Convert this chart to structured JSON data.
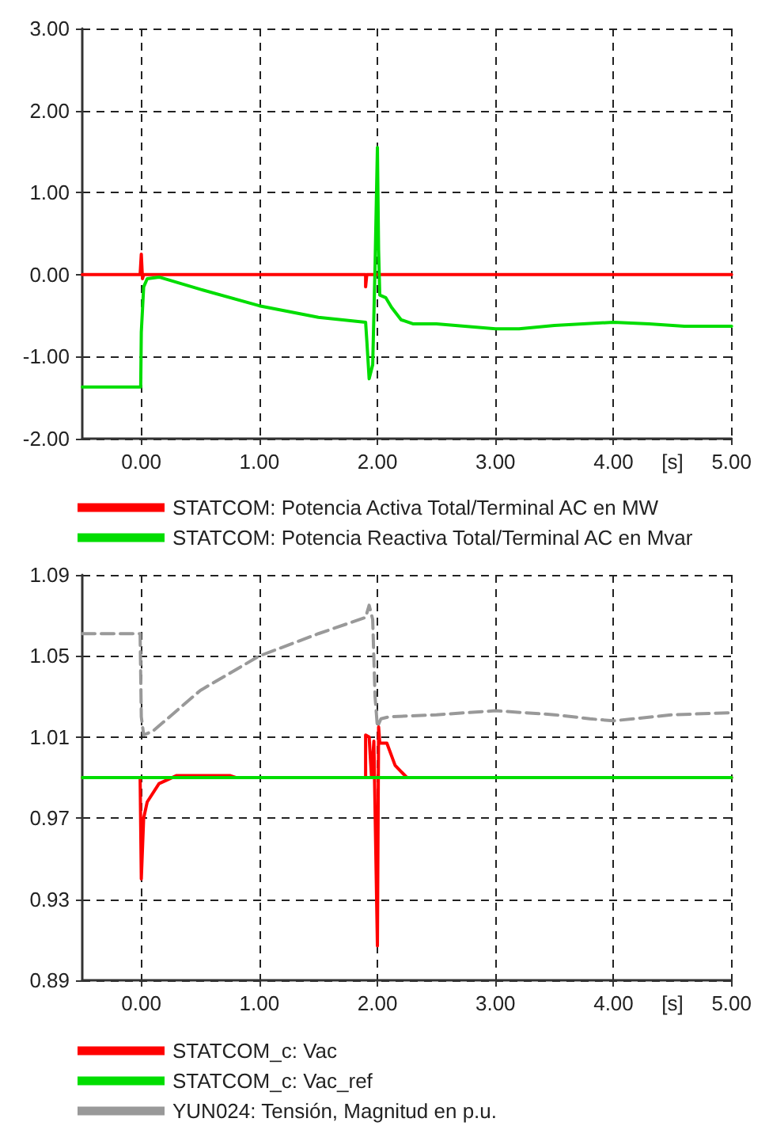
{
  "chart_data": [
    {
      "type": "line",
      "xlabel": "[s]",
      "xlim": [
        -0.5,
        5
      ],
      "xticks": [
        {
          "value": 0,
          "label": "0.00"
        },
        {
          "value": 1,
          "label": "1.00"
        },
        {
          "value": 2,
          "label": "2.00"
        },
        {
          "value": 3,
          "label": "3.00"
        },
        {
          "value": 4,
          "label": "4.00"
        },
        {
          "value": 5,
          "label": "5.00"
        }
      ],
      "ylim": [
        -2,
        3
      ],
      "yticks": [
        {
          "value": -2,
          "label": "-2.00"
        },
        {
          "value": -1,
          "label": "-1.00"
        },
        {
          "value": 0,
          "label": "0.00"
        },
        {
          "value": 1,
          "label": "1.00"
        },
        {
          "value": 2,
          "label": "2.00"
        },
        {
          "value": 3,
          "label": "3.00"
        }
      ],
      "grid": true,
      "legend": "bottom left",
      "marker": "none",
      "series": [
        {
          "name": "STATCOM: Potencia Activa Total/Terminal AC en MW",
          "color": "#ff0000",
          "line_style": "solid",
          "x": [
            -0.5,
            -0.01,
            0,
            0.01,
            0.02,
            1.9,
            1.9,
            1.91,
            5
          ],
          "values": [
            0,
            0,
            0.25,
            -0.05,
            0,
            0,
            -0.15,
            0,
            0
          ]
        },
        {
          "name": "STATCOM: Potencia Reactiva Total/Terminal AC en Mvar",
          "color": "#00dd00",
          "line_style": "solid",
          "x": [
            -0.5,
            -0.005,
            0,
            0.02,
            0.05,
            0.15,
            0.5,
            1,
            1.5,
            1.9,
            1.91,
            1.93,
            1.96,
            1.98,
            2,
            2.01,
            2.02,
            2.07,
            2.12,
            2.2,
            2.3,
            2.5,
            3,
            3.2,
            3.5,
            4,
            4.3,
            4.6,
            5
          ],
          "values": [
            -1.37,
            -1.37,
            -0.7,
            -0.15,
            -0.05,
            -0.03,
            -0.18,
            -0.38,
            -0.52,
            -0.58,
            -0.8,
            -1.27,
            -1.1,
            0.1,
            1.55,
            0.3,
            -0.25,
            -0.28,
            -0.4,
            -0.55,
            -0.6,
            -0.6,
            -0.66,
            -0.66,
            -0.62,
            -0.58,
            -0.6,
            -0.63,
            -0.63
          ]
        }
      ]
    },
    {
      "type": "line",
      "xlabel": "[s]",
      "xlim": [
        -0.5,
        5
      ],
      "xticks": [
        {
          "value": 0,
          "label": "0.00"
        },
        {
          "value": 1,
          "label": "1.00"
        },
        {
          "value": 2,
          "label": "2.00"
        },
        {
          "value": 3,
          "label": "3.00"
        },
        {
          "value": 4,
          "label": "4.00"
        },
        {
          "value": 5,
          "label": "5.00"
        }
      ],
      "ylim": [
        0.89,
        1.09
      ],
      "yticks": [
        0.89,
        0.93,
        0.97,
        1.01,
        1.05,
        1.09
      ],
      "grid": true,
      "legend": "bottom left",
      "marker": "none",
      "series": [
        {
          "name": "STATCOM_c: Vac",
          "color": "#ff0000",
          "line_style": "solid",
          "x": [
            -0.5,
            -0.01,
            0,
            0.02,
            0.05,
            0.15,
            0.3,
            0.75,
            0.8,
            1.9,
            1.9,
            1.93,
            1.95,
            1.97,
            2,
            2.01,
            2.02,
            2.08,
            2.15,
            2.25,
            2.5,
            5
          ],
          "values": [
            0.99,
            0.99,
            0.94,
            0.97,
            0.978,
            0.987,
            0.991,
            0.991,
            0.99,
            0.99,
            1.011,
            1.01,
            0.99,
            1.008,
            0.907,
            1.015,
            1.007,
            1.007,
            0.996,
            0.99,
            0.99,
            0.99
          ]
        },
        {
          "name": "STATCOM_c: Vac_ref",
          "color": "#00dd00",
          "line_style": "solid",
          "x": [
            -0.5,
            5
          ],
          "values": [
            0.99,
            0.99
          ]
        },
        {
          "name": "YUN024: Tensión, Magnitud en p.u.",
          "color": "#999999",
          "line_style": "dashed",
          "x": [
            -0.5,
            -0.01,
            0,
            0.02,
            0.1,
            0.5,
            1,
            1.5,
            1.9,
            1.93,
            1.96,
            1.98,
            2,
            2.03,
            2.1,
            2.5,
            3,
            3.5,
            3.8,
            4,
            4.5,
            5
          ],
          "values": [
            1.061,
            1.061,
            1.02,
            1.011,
            1.013,
            1.033,
            1.05,
            1.061,
            1.069,
            1.075,
            1.068,
            1.03,
            1.015,
            1.019,
            1.02,
            1.021,
            1.023,
            1.021,
            1.019,
            1.018,
            1.021,
            1.022
          ]
        }
      ]
    }
  ]
}
